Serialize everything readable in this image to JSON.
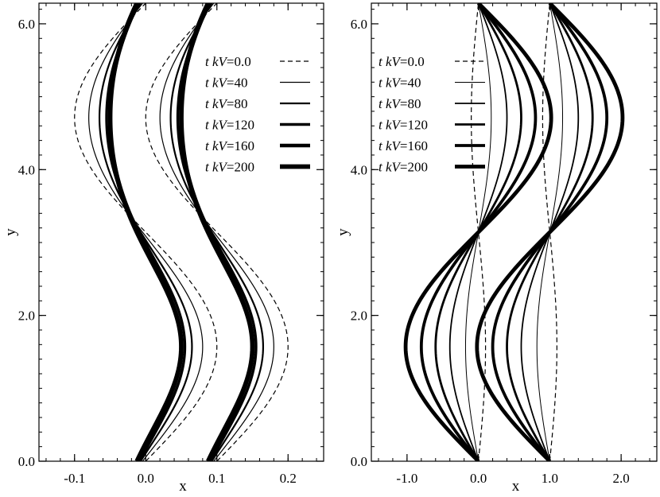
{
  "chart_data": [
    {
      "type": "line",
      "panel": "left",
      "xlabel": "x",
      "ylabel": "y",
      "xlim": [
        -0.15,
        0.25
      ],
      "ylim": [
        0.0,
        6.283
      ],
      "xticks": [
        -0.1,
        0.0,
        0.1,
        0.2
      ],
      "xtick_labels": [
        "-0.1",
        "0.0",
        "0.1",
        "0.2"
      ],
      "yticks": [
        0.0,
        2.0,
        4.0,
        6.0
      ],
      "ytick_labels": [
        "0.0",
        "2.0",
        "4.0",
        "6.0"
      ],
      "legend_position": "top-right",
      "curve_form": "x = x0 + A*sin(y), two field lines with x0 = 0.0 and x0 = 0.1",
      "field_line_offsets": [
        0.0,
        0.1
      ],
      "series": [
        {
          "legend_prefix": "t kV",
          "legend_value": "=0.0",
          "style": "dashed",
          "width": 1.2,
          "amplitude": 0.1,
          "phase_shift": 0.0
        },
        {
          "legend_prefix": "t kV",
          "legend_value": "=40",
          "style": "solid",
          "width": 1.2,
          "amplitude": 0.08,
          "phase_shift": 0.11
        },
        {
          "legend_prefix": "t kV",
          "legend_value": "=80",
          "style": "solid",
          "width": 2.2,
          "amplitude": 0.065,
          "phase_shift": 0.22
        },
        {
          "legend_prefix": "t kV",
          "legend_value": "=120",
          "style": "solid",
          "width": 3.4,
          "amplitude": 0.055,
          "phase_shift": 0.32
        },
        {
          "legend_prefix": "t kV",
          "legend_value": "=160",
          "style": "solid",
          "width": 4.4,
          "amplitude": 0.05,
          "phase_shift": 0.42
        },
        {
          "legend_prefix": "t kV",
          "legend_value": "=200",
          "style": "solid",
          "width": 5.8,
          "amplitude": 0.05,
          "phase_shift": 0.5
        }
      ]
    },
    {
      "type": "line",
      "panel": "right",
      "xlabel": "x",
      "ylabel": "y",
      "xlim": [
        -1.5,
        2.5
      ],
      "ylim": [
        0.0,
        6.283
      ],
      "xticks": [
        -1.0,
        0.0,
        1.0,
        2.0
      ],
      "xtick_labels": [
        "-1.0",
        "0.0",
        "1.0",
        "2.0"
      ],
      "yticks": [
        0.0,
        2.0,
        4.0,
        6.0
      ],
      "ytick_labels": [
        "0.0",
        "2.0",
        "4.0",
        "6.0"
      ],
      "legend_position": "top-left",
      "curve_form": "x = x0 - A*sin(y), two field lines with x0 = 0.0 and x0 = 1.0",
      "field_line_offsets": [
        0.0,
        1.0
      ],
      "series": [
        {
          "legend_prefix": "t kV",
          "legend_value": "=0.0",
          "style": "dashed",
          "width": 1.2,
          "amplitude": -0.1
        },
        {
          "legend_prefix": "t kV",
          "legend_value": "=40",
          "style": "solid",
          "width": 1.0,
          "amplitude": 0.18
        },
        {
          "legend_prefix": "t kV",
          "legend_value": "=80",
          "style": "solid",
          "width": 1.8,
          "amplitude": 0.4
        },
        {
          "legend_prefix": "t kV",
          "legend_value": "=120",
          "style": "solid",
          "width": 2.8,
          "amplitude": 0.6
        },
        {
          "legend_prefix": "t kV",
          "legend_value": "=160",
          "style": "solid",
          "width": 3.8,
          "amplitude": 0.8
        },
        {
          "legend_prefix": "t kV",
          "legend_value": "=200",
          "style": "solid",
          "width": 4.8,
          "amplitude": 1.02
        }
      ]
    }
  ]
}
